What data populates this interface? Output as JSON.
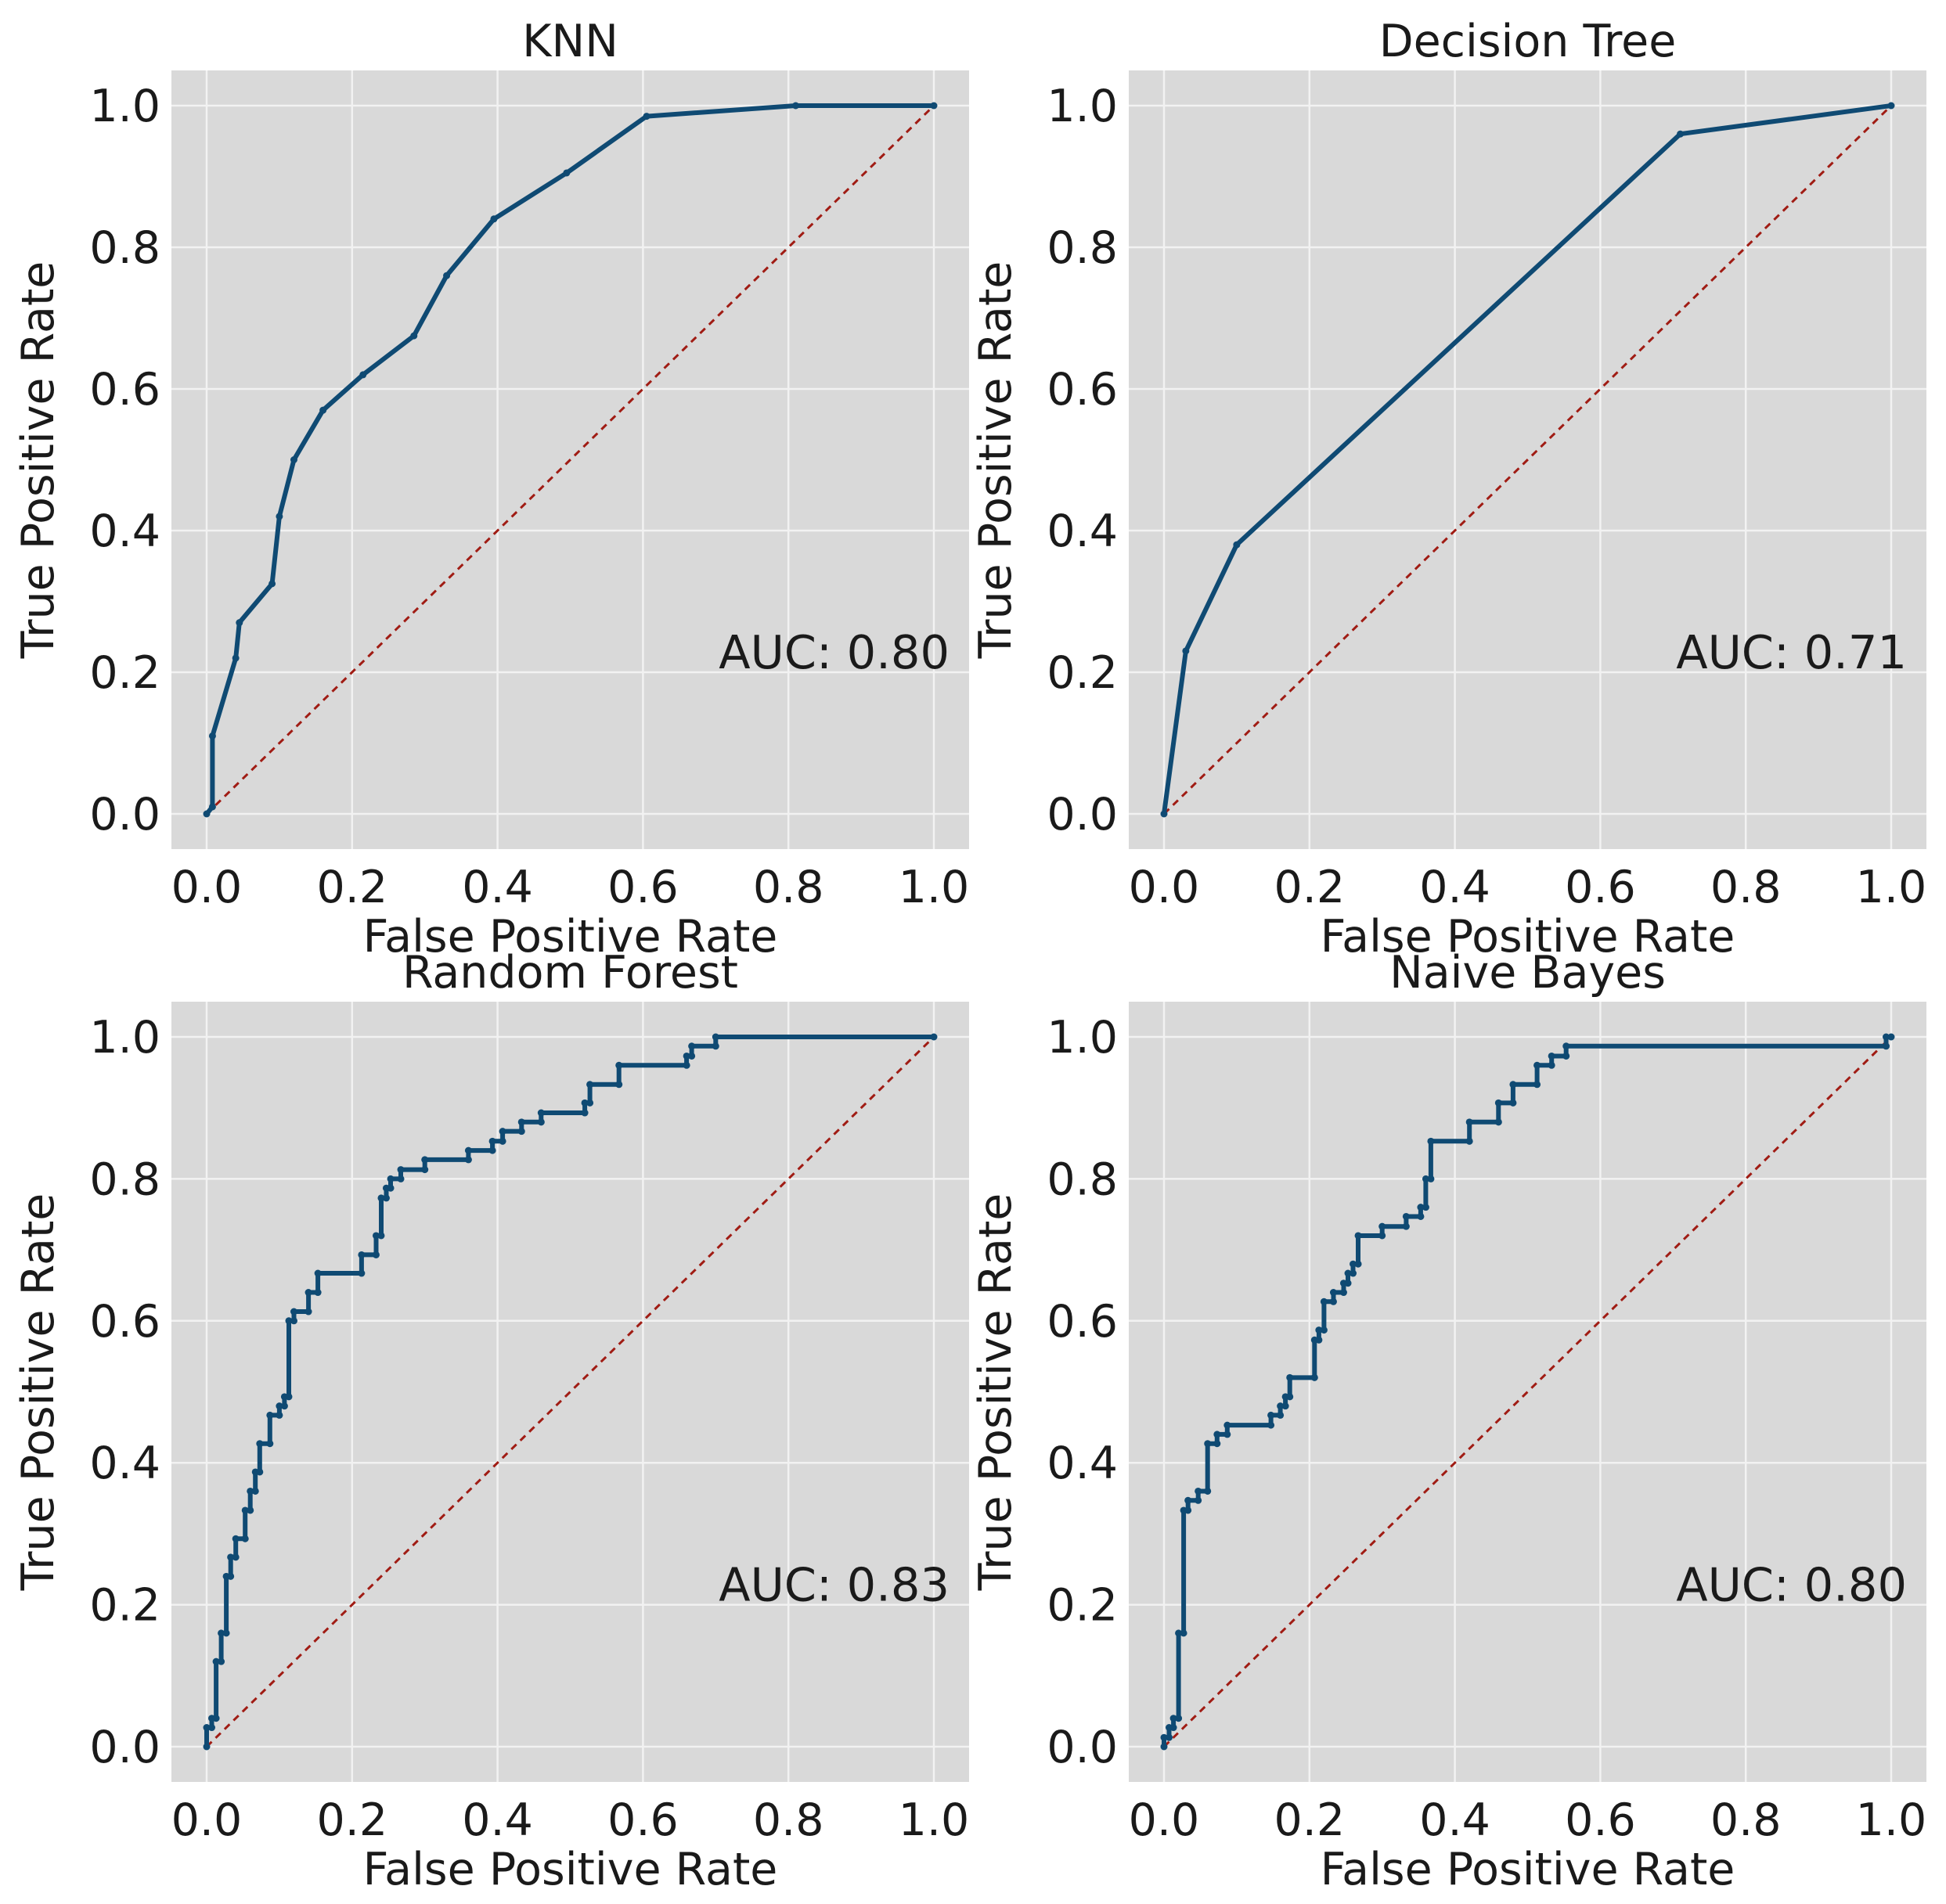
{
  "chart_data": [
    {
      "type": "line",
      "title": "KNN",
      "xlabel": "False Positive Rate",
      "ylabel": "True Positive Rate",
      "xlim": [
        0.0,
        1.0
      ],
      "ylim": [
        0.0,
        1.0
      ],
      "xticks": [
        "0.0",
        "0.2",
        "0.4",
        "0.6",
        "0.8",
        "1.0"
      ],
      "yticks": [
        "0.0",
        "0.2",
        "0.4",
        "0.6",
        "0.8",
        "1.0"
      ],
      "grid": true,
      "annotation": "AUC: 0.80",
      "x": [
        0.0,
        0.008,
        0.008,
        0.04,
        0.045,
        0.09,
        0.1,
        0.12,
        0.16,
        0.215,
        0.285,
        0.33,
        0.395,
        0.495,
        0.605,
        0.81,
        1.0
      ],
      "y": [
        0.0,
        0.01,
        0.11,
        0.22,
        0.27,
        0.325,
        0.42,
        0.5,
        0.57,
        0.62,
        0.675,
        0.76,
        0.84,
        0.905,
        0.985,
        1.0,
        1.0
      ],
      "baseline": {
        "x": [
          0,
          1
        ],
        "y": [
          0,
          1
        ]
      }
    },
    {
      "type": "line",
      "title": "Decision Tree",
      "xlabel": "False Positive Rate",
      "ylabel": "True Positive Rate",
      "xlim": [
        0.0,
        1.0
      ],
      "ylim": [
        0.0,
        1.0
      ],
      "xticks": [
        "0.0",
        "0.2",
        "0.4",
        "0.6",
        "0.8",
        "1.0"
      ],
      "yticks": [
        "0.0",
        "0.2",
        "0.4",
        "0.6",
        "0.8",
        "1.0"
      ],
      "grid": true,
      "annotation": "AUC: 0.71",
      "x": [
        0.0,
        0.03,
        0.1,
        0.71,
        1.0
      ],
      "y": [
        0.0,
        0.23,
        0.38,
        0.96,
        1.0
      ],
      "baseline": {
        "x": [
          0,
          1
        ],
        "y": [
          0,
          1
        ]
      }
    },
    {
      "type": "line",
      "title": "Random Forest",
      "xlabel": "False Positive Rate",
      "ylabel": "True Positive Rate",
      "xlim": [
        0.0,
        1.0
      ],
      "ylim": [
        0.0,
        1.0
      ],
      "xticks": [
        "0.0",
        "0.2",
        "0.4",
        "0.6",
        "0.8",
        "1.0"
      ],
      "yticks": [
        "0.0",
        "0.2",
        "0.4",
        "0.6",
        "0.8",
        "1.0"
      ],
      "grid": true,
      "annotation": "AUC: 0.83",
      "x": [
        0.0,
        0.0,
        0.007,
        0.007,
        0.013,
        0.013,
        0.02,
        0.02,
        0.027,
        0.027,
        0.033,
        0.033,
        0.04,
        0.04,
        0.053,
        0.053,
        0.06,
        0.06,
        0.067,
        0.067,
        0.073,
        0.073,
        0.087,
        0.087,
        0.1,
        0.1,
        0.107,
        0.107,
        0.113,
        0.113,
        0.12,
        0.12,
        0.14,
        0.14,
        0.153,
        0.153,
        0.213,
        0.213,
        0.233,
        0.233,
        0.24,
        0.24,
        0.247,
        0.247,
        0.253,
        0.253,
        0.267,
        0.267,
        0.3,
        0.3,
        0.36,
        0.36,
        0.393,
        0.393,
        0.407,
        0.407,
        0.433,
        0.433,
        0.46,
        0.46,
        0.52,
        0.52,
        0.527,
        0.527,
        0.567,
        0.567,
        0.66,
        0.66,
        0.667,
        0.667,
        0.7,
        0.7,
        1.0
      ],
      "y": [
        0.0,
        0.027,
        0.027,
        0.04,
        0.04,
        0.12,
        0.12,
        0.16,
        0.16,
        0.24,
        0.24,
        0.267,
        0.267,
        0.293,
        0.293,
        0.333,
        0.333,
        0.36,
        0.36,
        0.387,
        0.387,
        0.427,
        0.427,
        0.467,
        0.467,
        0.48,
        0.48,
        0.493,
        0.493,
        0.6,
        0.6,
        0.613,
        0.613,
        0.64,
        0.64,
        0.667,
        0.667,
        0.693,
        0.693,
        0.72,
        0.72,
        0.773,
        0.773,
        0.787,
        0.787,
        0.8,
        0.8,
        0.813,
        0.813,
        0.827,
        0.827,
        0.84,
        0.84,
        0.853,
        0.853,
        0.867,
        0.867,
        0.88,
        0.88,
        0.893,
        0.893,
        0.907,
        0.907,
        0.933,
        0.933,
        0.96,
        0.96,
        0.973,
        0.973,
        0.987,
        0.987,
        1.0,
        1.0
      ],
      "baseline": {
        "x": [
          0,
          1
        ],
        "y": [
          0,
          1
        ]
      }
    },
    {
      "type": "line",
      "title": "Naive Bayes",
      "xlabel": "False Positive Rate",
      "ylabel": "True Positive Rate",
      "xlim": [
        0.0,
        1.0
      ],
      "ylim": [
        0.0,
        1.0
      ],
      "xticks": [
        "0.0",
        "0.2",
        "0.4",
        "0.6",
        "0.8",
        "1.0"
      ],
      "yticks": [
        "0.0",
        "0.2",
        "0.4",
        "0.6",
        "0.8",
        "1.0"
      ],
      "grid": true,
      "annotation": "AUC: 0.80",
      "x": [
        0.0,
        0.0,
        0.007,
        0.007,
        0.013,
        0.013,
        0.02,
        0.02,
        0.027,
        0.027,
        0.033,
        0.033,
        0.047,
        0.047,
        0.06,
        0.06,
        0.073,
        0.073,
        0.087,
        0.087,
        0.147,
        0.147,
        0.16,
        0.16,
        0.167,
        0.167,
        0.173,
        0.173,
        0.207,
        0.207,
        0.213,
        0.213,
        0.22,
        0.22,
        0.233,
        0.233,
        0.247,
        0.247,
        0.253,
        0.253,
        0.26,
        0.26,
        0.267,
        0.267,
        0.3,
        0.3,
        0.333,
        0.333,
        0.353,
        0.353,
        0.36,
        0.36,
        0.367,
        0.367,
        0.42,
        0.42,
        0.46,
        0.46,
        0.48,
        0.48,
        0.513,
        0.513,
        0.533,
        0.533,
        0.553,
        0.553,
        0.993,
        0.993,
        1.0
      ],
      "y": [
        0.0,
        0.013,
        0.013,
        0.027,
        0.027,
        0.04,
        0.04,
        0.16,
        0.16,
        0.333,
        0.333,
        0.347,
        0.347,
        0.36,
        0.36,
        0.427,
        0.427,
        0.44,
        0.44,
        0.453,
        0.453,
        0.467,
        0.467,
        0.48,
        0.48,
        0.493,
        0.493,
        0.52,
        0.52,
        0.573,
        0.573,
        0.587,
        0.587,
        0.627,
        0.627,
        0.64,
        0.64,
        0.653,
        0.653,
        0.667,
        0.667,
        0.68,
        0.68,
        0.72,
        0.72,
        0.733,
        0.733,
        0.747,
        0.747,
        0.76,
        0.76,
        0.8,
        0.8,
        0.853,
        0.853,
        0.88,
        0.88,
        0.907,
        0.907,
        0.933,
        0.933,
        0.96,
        0.96,
        0.973,
        0.973,
        0.987,
        0.987,
        1.0,
        1.0
      ],
      "baseline": {
        "x": [
          0,
          1
        ],
        "y": [
          0,
          1
        ]
      }
    }
  ]
}
